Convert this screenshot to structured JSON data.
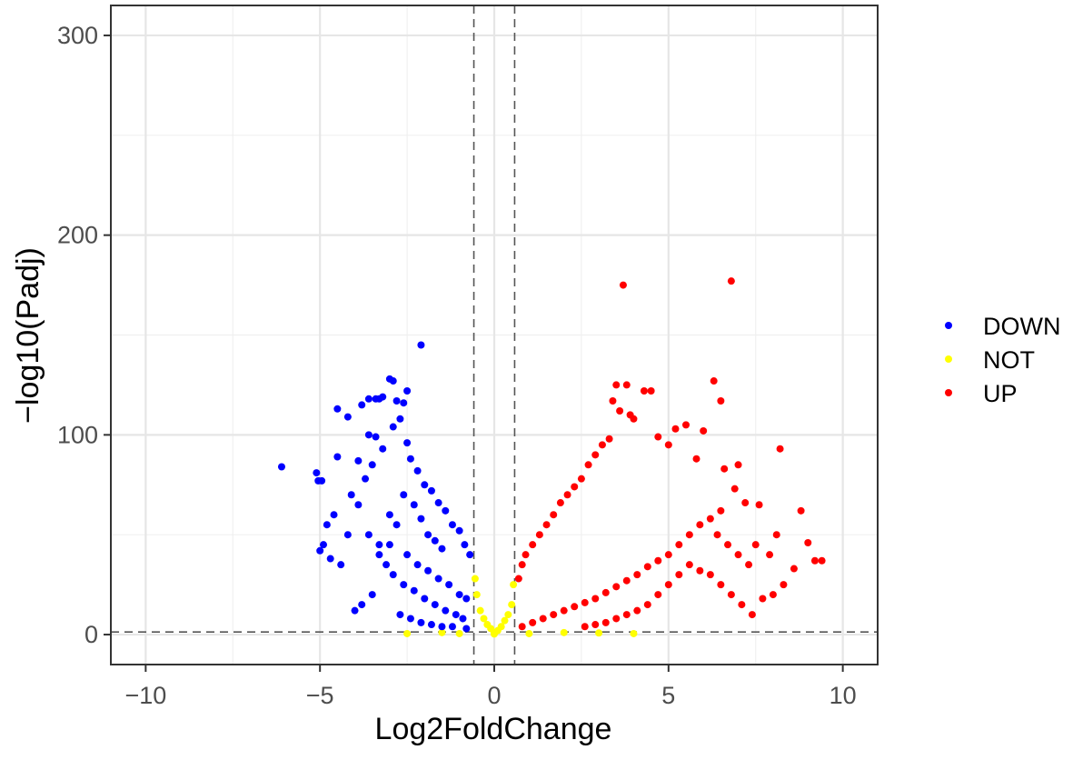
{
  "chart_data": {
    "type": "scatter",
    "title": "",
    "xlabel": "Log2FoldChange",
    "ylabel": "−log10(Padj)",
    "xlim": [
      -11,
      11
    ],
    "ylim": [
      -15,
      315
    ],
    "x_ticks": [
      -10,
      -5,
      0,
      5,
      10
    ],
    "x_tick_labels": [
      "−10",
      "−5",
      "0",
      "5",
      "10"
    ],
    "y_ticks": [
      0,
      100,
      200,
      300
    ],
    "y_tick_labels": [
      "0",
      "100",
      "200",
      "300"
    ],
    "grid": true,
    "legend_position": "right",
    "thresholds": {
      "x": [
        -0.585,
        0.585
      ],
      "y": 1.3
    },
    "series": [
      {
        "name": "DOWN",
        "color": "#0000ff",
        "points": [
          [
            -6.1,
            84
          ],
          [
            -5.1,
            81
          ],
          [
            -4.95,
            77
          ],
          [
            -5.05,
            77
          ],
          [
            -4.5,
            89
          ],
          [
            -4.2,
            109
          ],
          [
            -4.5,
            113
          ],
          [
            -3.8,
            115
          ],
          [
            -3.6,
            118
          ],
          [
            -3.4,
            118
          ],
          [
            -3.3,
            118
          ],
          [
            -3.2,
            119
          ],
          [
            -3.0,
            128
          ],
          [
            -2.9,
            127
          ],
          [
            -2.8,
            117
          ],
          [
            -2.6,
            116
          ],
          [
            -2.5,
            122
          ],
          [
            -2.1,
            145
          ],
          [
            -3.6,
            100
          ],
          [
            -3.4,
            99
          ],
          [
            -3.9,
            87
          ],
          [
            -4.1,
            70
          ],
          [
            -4.6,
            60
          ],
          [
            -4.8,
            55
          ],
          [
            -4.9,
            45
          ],
          [
            -5.0,
            42
          ],
          [
            -4.7,
            38
          ],
          [
            -4.4,
            35
          ],
          [
            -4.2,
            50
          ],
          [
            -3.9,
            65
          ],
          [
            -3.7,
            78
          ],
          [
            -3.5,
            85
          ],
          [
            -3.2,
            93
          ],
          [
            -2.9,
            104
          ],
          [
            -2.7,
            108
          ],
          [
            -2.5,
            96
          ],
          [
            -2.4,
            88
          ],
          [
            -2.2,
            82
          ],
          [
            -2.0,
            75
          ],
          [
            -1.8,
            72
          ],
          [
            -1.6,
            66
          ],
          [
            -1.4,
            62
          ],
          [
            -1.2,
            55
          ],
          [
            -1.0,
            52
          ],
          [
            -0.85,
            45
          ],
          [
            -0.7,
            40
          ],
          [
            -3.0,
            60
          ],
          [
            -2.8,
            55
          ],
          [
            -2.6,
            70
          ],
          [
            -2.3,
            65
          ],
          [
            -2.1,
            58
          ],
          [
            -1.9,
            50
          ],
          [
            -1.7,
            47
          ],
          [
            -1.5,
            43
          ],
          [
            -3.3,
            40
          ],
          [
            -3.1,
            35
          ],
          [
            -2.9,
            30
          ],
          [
            -2.6,
            25
          ],
          [
            -2.3,
            22
          ],
          [
            -2.0,
            18
          ],
          [
            -1.7,
            15
          ],
          [
            -1.4,
            12
          ],
          [
            -1.1,
            10
          ],
          [
            -0.9,
            8
          ],
          [
            -3.5,
            20
          ],
          [
            -3.8,
            15
          ],
          [
            -4.0,
            12
          ],
          [
            -2.7,
            10
          ],
          [
            -2.4,
            8
          ],
          [
            -2.1,
            6
          ],
          [
            -1.8,
            5
          ],
          [
            -1.5,
            4
          ],
          [
            -1.2,
            4
          ],
          [
            -0.8,
            3
          ],
          [
            -3.6,
            50
          ],
          [
            -3.3,
            45
          ],
          [
            -3.0,
            45
          ],
          [
            -2.5,
            40
          ],
          [
            -2.2,
            35
          ],
          [
            -1.9,
            32
          ],
          [
            -1.6,
            28
          ],
          [
            -1.3,
            25
          ],
          [
            -1.0,
            20
          ],
          [
            -0.8,
            18
          ]
        ]
      },
      {
        "name": "NOT",
        "color": "#ffff00",
        "points": [
          [
            -0.5,
            20
          ],
          [
            -0.4,
            12
          ],
          [
            -0.3,
            8
          ],
          [
            -0.2,
            5
          ],
          [
            -0.1,
            3
          ],
          [
            0.0,
            1
          ],
          [
            0.1,
            2
          ],
          [
            0.2,
            4
          ],
          [
            0.3,
            7
          ],
          [
            0.4,
            10
          ],
          [
            0.5,
            15
          ],
          [
            0.55,
            25
          ],
          [
            -0.55,
            28
          ],
          [
            -1.5,
            1
          ],
          [
            -1.0,
            0.5
          ],
          [
            1.0,
            0.5
          ],
          [
            2.0,
            1
          ],
          [
            3.0,
            0.8
          ],
          [
            4.0,
            0.5
          ],
          [
            -2.5,
            0.5
          ],
          [
            0.0,
            0.3
          ]
        ]
      },
      {
        "name": "UP",
        "color": "#ff0000",
        "points": [
          [
            3.7,
            175
          ],
          [
            6.8,
            177
          ],
          [
            6.3,
            127
          ],
          [
            6.5,
            117
          ],
          [
            3.5,
            125
          ],
          [
            3.8,
            125
          ],
          [
            4.3,
            122
          ],
          [
            4.5,
            122
          ],
          [
            3.4,
            117
          ],
          [
            3.6,
            112
          ],
          [
            3.9,
            110
          ],
          [
            4.0,
            108
          ],
          [
            5.2,
            103
          ],
          [
            5.5,
            105
          ],
          [
            6.0,
            102
          ],
          [
            8.2,
            93
          ],
          [
            7.0,
            85
          ],
          [
            6.6,
            83
          ],
          [
            5.8,
            88
          ],
          [
            5.0,
            95
          ],
          [
            4.7,
            99
          ],
          [
            3.3,
            98
          ],
          [
            3.1,
            95
          ],
          [
            2.9,
            90
          ],
          [
            2.7,
            85
          ],
          [
            2.5,
            78
          ],
          [
            2.3,
            74
          ],
          [
            2.1,
            70
          ],
          [
            1.9,
            66
          ],
          [
            1.7,
            60
          ],
          [
            1.5,
            55
          ],
          [
            1.3,
            50
          ],
          [
            1.1,
            45
          ],
          [
            0.9,
            40
          ],
          [
            0.8,
            35
          ],
          [
            0.7,
            28
          ],
          [
            7.6,
            65
          ],
          [
            7.2,
            66
          ],
          [
            6.9,
            73
          ],
          [
            6.5,
            62
          ],
          [
            6.2,
            58
          ],
          [
            5.9,
            55
          ],
          [
            5.6,
            50
          ],
          [
            5.3,
            45
          ],
          [
            5.0,
            40
          ],
          [
            4.7,
            37
          ],
          [
            4.4,
            34
          ],
          [
            4.1,
            30
          ],
          [
            3.8,
            27
          ],
          [
            3.5,
            24
          ],
          [
            3.2,
            21
          ],
          [
            2.9,
            18
          ],
          [
            2.6,
            16
          ],
          [
            2.3,
            14
          ],
          [
            2.0,
            12
          ],
          [
            1.7,
            10
          ],
          [
            1.4,
            8
          ],
          [
            1.1,
            6
          ],
          [
            0.8,
            4
          ],
          [
            8.8,
            62
          ],
          [
            9.0,
            46
          ],
          [
            9.2,
            37
          ],
          [
            9.4,
            37
          ],
          [
            8.6,
            33
          ],
          [
            8.3,
            25
          ],
          [
            8.0,
            20
          ],
          [
            7.7,
            18
          ],
          [
            7.4,
            10
          ],
          [
            7.1,
            15
          ],
          [
            6.8,
            20
          ],
          [
            6.5,
            25
          ],
          [
            6.2,
            30
          ],
          [
            5.9,
            32
          ],
          [
            5.6,
            35
          ],
          [
            5.3,
            30
          ],
          [
            5.0,
            25
          ],
          [
            4.7,
            20
          ],
          [
            4.4,
            15
          ],
          [
            4.1,
            12
          ],
          [
            3.8,
            10
          ],
          [
            3.5,
            8
          ],
          [
            3.2,
            6
          ],
          [
            2.9,
            5
          ],
          [
            2.6,
            4
          ],
          [
            7.9,
            40
          ],
          [
            8.1,
            50
          ],
          [
            7.5,
            45
          ],
          [
            7.3,
            35
          ],
          [
            7.0,
            40
          ],
          [
            6.7,
            45
          ],
          [
            6.4,
            50
          ]
        ]
      }
    ]
  }
}
